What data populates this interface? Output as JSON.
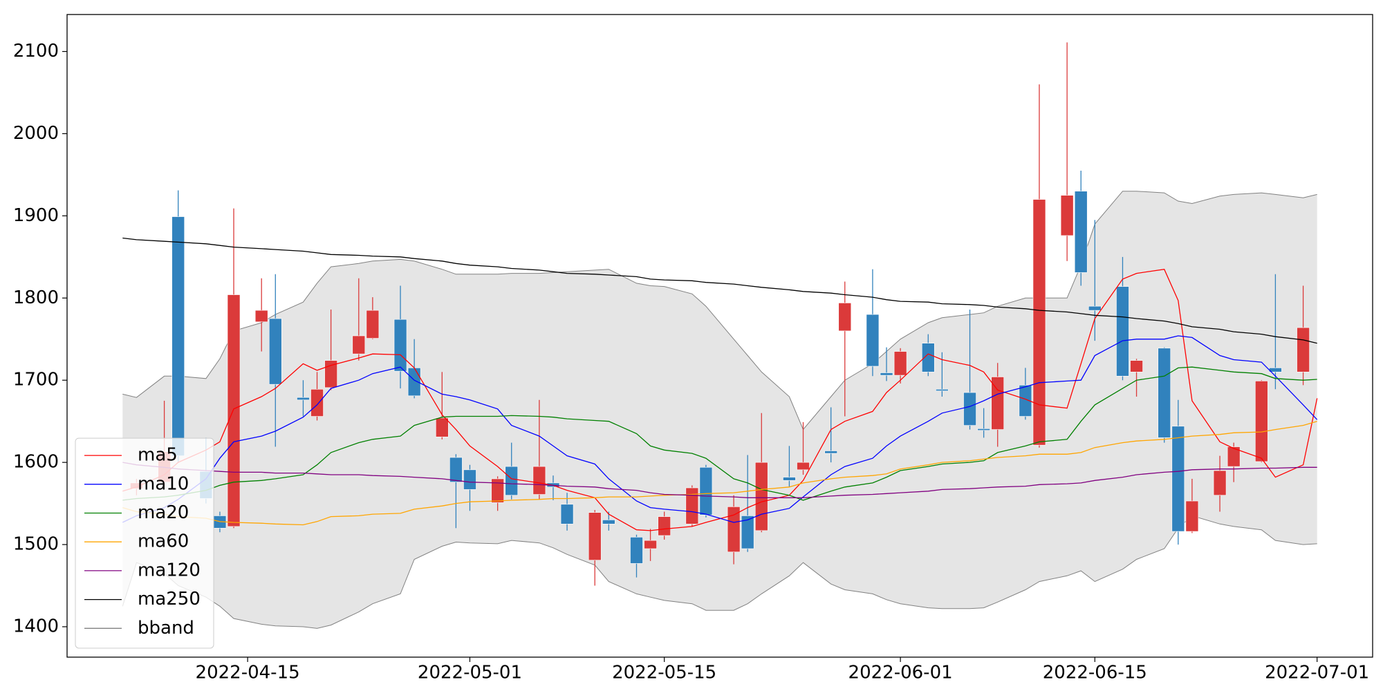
{
  "chart_data": {
    "type": "candlestick",
    "x": [
      "2022-04-06",
      "2022-04-07",
      "2022-04-09",
      "2022-04-10",
      "2022-04-12",
      "2022-04-13",
      "2022-04-14",
      "2022-04-16",
      "2022-04-17",
      "2022-04-19",
      "2022-04-20",
      "2022-04-21",
      "2022-04-23",
      "2022-04-24",
      "2022-04-26",
      "2022-04-27",
      "2022-04-29",
      "2022-04-30",
      "2022-05-01",
      "2022-05-03",
      "2022-05-04",
      "2022-05-06",
      "2022-05-07",
      "2022-05-08",
      "2022-05-10",
      "2022-05-11",
      "2022-05-13",
      "2022-05-14",
      "2022-05-15",
      "2022-05-17",
      "2022-05-18",
      "2022-05-20",
      "2022-05-21",
      "2022-05-22",
      "2022-05-24",
      "2022-05-25",
      "2022-05-27",
      "2022-05-28",
      "2022-05-30",
      "2022-05-31",
      "2022-06-01",
      "2022-06-03",
      "2022-06-04",
      "2022-06-06",
      "2022-06-07",
      "2022-06-08",
      "2022-06-10",
      "2022-06-11",
      "2022-06-13",
      "2022-06-14",
      "2022-06-15",
      "2022-06-17",
      "2022-06-18",
      "2022-06-20",
      "2022-06-21",
      "2022-06-22",
      "2022-06-24",
      "2022-06-25",
      "2022-06-27",
      "2022-06-28",
      "2022-06-30",
      "2022-07-01"
    ],
    "open": [
      null,
      1568,
      1576,
      1899,
      1589,
      1535,
      1522,
      1771,
      1775,
      1679,
      1656,
      1691,
      1732,
      1751,
      1774,
      1715,
      1631,
      1606,
      1591,
      1551,
      1595,
      1561,
      1575,
      1549,
      1481,
      1530,
      1509,
      1495,
      1511,
      1525,
      1594,
      1491,
      1535,
      1517,
      1582,
      1591,
      1614,
      1760,
      1780,
      1709,
      1706,
      1745,
      1689,
      1685,
      1641,
      1640,
      1694,
      1621,
      1876,
      1930,
      1790,
      1814,
      1710,
      1739,
      1644,
      1516,
      1560,
      1595,
      1601,
      1715,
      1710,
      null
    ],
    "high": [
      null,
      1580,
      1675,
      1931,
      1630,
      1540,
      1909,
      1824,
      1829,
      1700,
      1710,
      1786,
      1824,
      1801,
      1815,
      1750,
      1710,
      1610,
      1597,
      1583,
      1624,
      1676,
      1584,
      1563,
      1542,
      1540,
      1512,
      1519,
      1540,
      1572,
      1597,
      1560,
      1609,
      1660,
      1620,
      1649,
      1667,
      1820,
      1835,
      1740,
      1739,
      1756,
      1734,
      1786,
      1666,
      1721,
      1715,
      2060,
      2111,
      1955,
      1895,
      1850,
      1726,
      1740,
      1676,
      1580,
      1608,
      1624,
      1700,
      1829,
      1815,
      null
    ],
    "low": [
      null,
      1560,
      1570,
      1600,
      1550,
      1515,
      1520,
      1735,
      1619,
      1656,
      1651,
      1688,
      1724,
      1750,
      1690,
      1678,
      1628,
      1520,
      1541,
      1541,
      1555,
      1555,
      1554,
      1517,
      1450,
      1517,
      1460,
      1480,
      1506,
      1522,
      1533,
      1476,
      1491,
      1515,
      1570,
      1585,
      1600,
      1656,
      1705,
      1699,
      1696,
      1705,
      1680,
      1640,
      1630,
      1619,
      1652,
      1618,
      1845,
      1815,
      1748,
      1700,
      1680,
      1624,
      1500,
      1514,
      1540,
      1576,
      1600,
      1689,
      1694,
      null
    ],
    "close": [
      null,
      1575,
      1613,
      1608,
      1556,
      1520,
      1804,
      1785,
      1695,
      1676,
      1689,
      1724,
      1754,
      1785,
      1711,
      1681,
      1654,
      1576,
      1567,
      1580,
      1560,
      1595,
      1570,
      1525,
      1539,
      1525,
      1477,
      1505,
      1534,
      1569,
      1536,
      1546,
      1495,
      1600,
      1578,
      1600,
      1611,
      1794,
      1717,
      1706,
      1735,
      1710,
      1687,
      1645,
      1639,
      1704,
      1656,
      1920,
      1925,
      1831,
      1785,
      1705,
      1724,
      1630,
      1516,
      1553,
      1590,
      1619,
      1699,
      1710,
      1764,
      null
    ],
    "up_color": "#db3a3a",
    "down_color": "#3182bd",
    "series": [
      {
        "name": "ma5",
        "color": "red",
        "values": [
          1565,
          1570,
          1585,
          1600,
          1615,
          1625,
          1665,
          1680,
          1690,
          1720,
          1712,
          1718,
          1727,
          1732,
          1731,
          1715,
          1658,
          1640,
          1620,
          1595,
          1580,
          1575,
          1572,
          1566,
          1557,
          1537,
          1518,
          1517,
          1519,
          1522,
          1527,
          1536,
          1545,
          1552,
          1560,
          1578,
          1640,
          1650,
          1662,
          1685,
          1700,
          1732,
          1725,
          1718,
          1710,
          1688,
          1677,
          1670,
          1666,
          1720,
          1775,
          1823,
          1830,
          1835,
          1797,
          1675,
          1625,
          1617,
          1605,
          1582,
          1597,
          1678
        ]
      },
      {
        "name": "ma10",
        "color": "blue",
        "values": [
          1527,
          1535,
          1545,
          1555,
          1580,
          1605,
          1625,
          1632,
          1638,
          1655,
          1670,
          1690,
          1700,
          1708,
          1716,
          1700,
          1683,
          1680,
          1676,
          1665,
          1645,
          1632,
          1620,
          1608,
          1598,
          1580,
          1553,
          1545,
          1543,
          1540,
          1537,
          1527,
          1530,
          1537,
          1544,
          1558,
          1585,
          1595,
          1605,
          1620,
          1632,
          1650,
          1660,
          1668,
          1675,
          1683,
          1692,
          1697,
          1699,
          1700,
          1730,
          1748,
          1750,
          1750,
          1754,
          1752,
          1730,
          1725,
          1722,
          1705,
          1670,
          1652
        ]
      },
      {
        "name": "ma20",
        "color": "green",
        "values": [
          1554,
          1556,
          1558,
          1560,
          1566,
          1572,
          1576,
          1578,
          1580,
          1585,
          1597,
          1612,
          1624,
          1628,
          1632,
          1645,
          1655,
          1656,
          1656,
          1656,
          1657,
          1656,
          1655,
          1653,
          1651,
          1650,
          1635,
          1620,
          1615,
          1611,
          1605,
          1580,
          1575,
          1567,
          1560,
          1554,
          1565,
          1570,
          1575,
          1582,
          1590,
          1595,
          1598,
          1600,
          1602,
          1612,
          1620,
          1625,
          1628,
          1650,
          1670,
          1690,
          1700,
          1705,
          1715,
          1716,
          1712,
          1710,
          1708,
          1702,
          1700,
          1701
        ]
      },
      {
        "name": "ma60",
        "color": "orange",
        "values": [
          1545,
          1540,
          1537,
          1534,
          1532,
          1528,
          1527,
          1526,
          1525,
          1524,
          1528,
          1534,
          1535,
          1537,
          1538,
          1543,
          1547,
          1550,
          1552,
          1553,
          1554,
          1555,
          1556,
          1556,
          1557,
          1558,
          1558,
          1559,
          1560,
          1561,
          1562,
          1563,
          1565,
          1567,
          1570,
          1575,
          1580,
          1582,
          1584,
          1586,
          1592,
          1597,
          1600,
          1602,
          1604,
          1606,
          1608,
          1610,
          1610,
          1612,
          1618,
          1624,
          1626,
          1628,
          1630,
          1632,
          1634,
          1636,
          1637,
          1640,
          1645,
          1650
        ]
      },
      {
        "name": "ma120",
        "color": "purple",
        "values": [
          1600,
          1597,
          1594,
          1592,
          1590,
          1589,
          1588,
          1588,
          1587,
          1587,
          1586,
          1585,
          1585,
          1584,
          1583,
          1582,
          1580,
          1578,
          1576,
          1575,
          1574,
          1573,
          1572,
          1571,
          1570,
          1568,
          1566,
          1563,
          1561,
          1560,
          1559,
          1558,
          1557,
          1557,
          1557,
          1557,
          1559,
          1560,
          1561,
          1562,
          1563,
          1565,
          1567,
          1568,
          1569,
          1570,
          1571,
          1573,
          1574,
          1575,
          1578,
          1582,
          1585,
          1588,
          1589,
          1591,
          1592,
          1592,
          1593,
          1593,
          1594,
          1594
        ]
      },
      {
        "name": "ma250",
        "color": "black",
        "values": [
          1873,
          1871,
          1869,
          1868,
          1866,
          1864,
          1862,
          1860,
          1859,
          1857,
          1855,
          1853,
          1852,
          1851,
          1850,
          1848,
          1845,
          1842,
          1840,
          1838,
          1836,
          1834,
          1832,
          1830,
          1829,
          1828,
          1826,
          1823,
          1822,
          1821,
          1819,
          1817,
          1815,
          1813,
          1810,
          1808,
          1806,
          1804,
          1801,
          1798,
          1796,
          1795,
          1793,
          1792,
          1791,
          1789,
          1787,
          1785,
          1783,
          1781,
          1779,
          1777,
          1775,
          1772,
          1769,
          1765,
          1762,
          1759,
          1756,
          1753,
          1749,
          1745
        ]
      }
    ],
    "bband": {
      "name": "bband",
      "color": "gray",
      "fill": "#e5e5e5",
      "upper": [
        1683,
        1679,
        1705,
        1705,
        1702,
        1726,
        1760,
        1770,
        1780,
        1795,
        1818,
        1838,
        1842,
        1845,
        1847,
        1845,
        1835,
        1829,
        1829,
        1829,
        1830,
        1830,
        1831,
        1832,
        1834,
        1835,
        1818,
        1815,
        1814,
        1805,
        1790,
        1750,
        1730,
        1710,
        1680,
        1640,
        1680,
        1700,
        1720,
        1735,
        1750,
        1770,
        1776,
        1780,
        1782,
        1790,
        1800,
        1800,
        1800,
        1840,
        1890,
        1930,
        1930,
        1928,
        1918,
        1915,
        1924,
        1926,
        1928,
        1926,
        1922,
        1926
      ],
      "lower": [
        1425,
        1478,
        1465,
        1450,
        1436,
        1425,
        1410,
        1403,
        1401,
        1400,
        1398,
        1402,
        1418,
        1428,
        1440,
        1482,
        1498,
        1503,
        1502,
        1501,
        1505,
        1502,
        1496,
        1488,
        1475,
        1455,
        1440,
        1436,
        1432,
        1428,
        1420,
        1420,
        1428,
        1440,
        1462,
        1478,
        1452,
        1445,
        1440,
        1433,
        1428,
        1423,
        1422,
        1422,
        1423,
        1430,
        1445,
        1455,
        1462,
        1468,
        1455,
        1470,
        1482,
        1495,
        1520,
        1535,
        1525,
        1522,
        1518,
        1505,
        1500,
        1501
      ]
    },
    "xlim": [
      "2022-04-02",
      "2022-07-05"
    ],
    "xticks": [
      "2022-04-15",
      "2022-05-01",
      "2022-05-15",
      "2022-06-01",
      "2022-06-15",
      "2022-07-01"
    ],
    "ylim": [
      1363,
      2145
    ],
    "yticks": [
      1400,
      1500,
      1600,
      1700,
      1800,
      1900,
      2000,
      2100
    ],
    "legend": "lower left"
  }
}
